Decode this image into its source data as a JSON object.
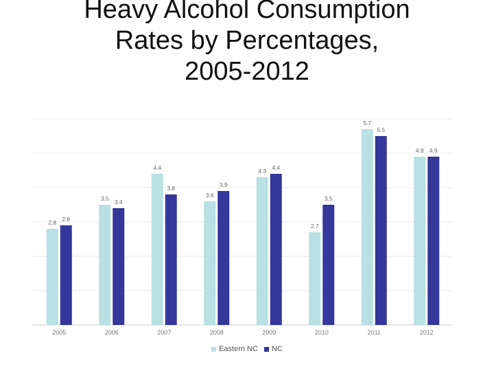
{
  "chart_data": {
    "type": "bar",
    "title": [
      "Heavy Alcohol Consumption",
      "Rates by Percentages,",
      "2005-2012"
    ],
    "categories": [
      "2005",
      "2006",
      "2007",
      "2008",
      "2009",
      "2010",
      "2011",
      "2012"
    ],
    "series": [
      {
        "name": "Eastern NC",
        "color": "#b9e0e3",
        "values": [
          2.8,
          3.5,
          4.4,
          3.6,
          4.3,
          2.7,
          5.7,
          4.9
        ]
      },
      {
        "name": "NC",
        "color": "#35379a",
        "values": [
          2.9,
          3.4,
          3.8,
          3.9,
          4.4,
          3.5,
          5.5,
          4.9
        ]
      }
    ],
    "ylim": [
      0,
      6
    ],
    "grid": true,
    "legend_position": "bottom"
  }
}
